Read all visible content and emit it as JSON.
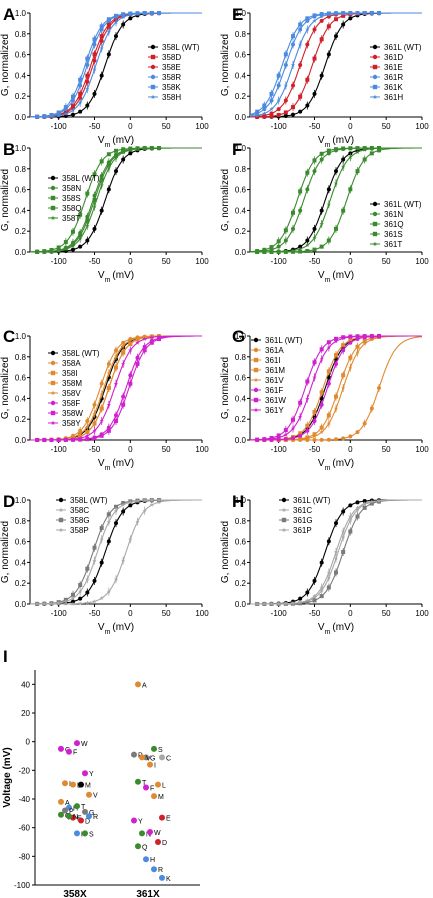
{
  "colors": {
    "wt": "#000000",
    "blue": "#4a8be0",
    "red": "#d0202a",
    "green": "#3a8a2e",
    "orange": "#e08a30",
    "magenta": "#d020d0",
    "grey": "#7a7a7a",
    "lightgrey": "#a8a8a8"
  },
  "chart_data": [
    {
      "panel": "A",
      "type": "line",
      "xlabel": "Vm (mV)",
      "ylabel": "G, normalized",
      "xlim": [
        -140,
        100
      ],
      "ylim": [
        0,
        1
      ],
      "xticks": [
        -100,
        -50,
        0,
        50,
        100
      ],
      "yticks": [
        0.0,
        0.2,
        0.4,
        0.6,
        0.8,
        1.0
      ],
      "series": [
        {
          "name": "358L (WT)",
          "v": -35,
          "color": "#000000",
          "marker": "circle"
        },
        {
          "name": "358D",
          "v": -55,
          "color": "#d0202a",
          "marker": "square"
        },
        {
          "name": "358E",
          "v": -52,
          "color": "#d0202a",
          "marker": "circle"
        },
        {
          "name": "358R",
          "v": -60,
          "color": "#4a8be0",
          "marker": "circle"
        },
        {
          "name": "358K",
          "v": -63,
          "color": "#4a8be0",
          "marker": "square"
        },
        {
          "name": "358H",
          "v": -48,
          "color": "#4a8be0",
          "marker": "star"
        }
      ]
    },
    {
      "panel": "B",
      "type": "line",
      "xlabel": "Vm (mV)",
      "ylabel": "G, normalized",
      "xlim": [
        -140,
        100
      ],
      "ylim": [
        0,
        1
      ],
      "xticks": [
        -100,
        -50,
        0,
        50,
        100
      ],
      "yticks": [
        0.0,
        0.2,
        0.4,
        0.6,
        0.8,
        1.0
      ],
      "series": [
        {
          "name": "358L (WT)",
          "v": -35,
          "color": "#000000",
          "marker": "circle"
        },
        {
          "name": "358N",
          "v": -52,
          "color": "#3a8a2e",
          "marker": "circle"
        },
        {
          "name": "358S",
          "v": -63,
          "color": "#3a8a2e",
          "marker": "square"
        },
        {
          "name": "358Q",
          "v": -50,
          "color": "#3a8a2e",
          "marker": "square"
        },
        {
          "name": "358T",
          "v": -47,
          "color": "#3a8a2e",
          "marker": "star"
        }
      ]
    },
    {
      "panel": "C",
      "type": "line",
      "xlabel": "Vm (mV)",
      "ylabel": "G, normalized",
      "xlim": [
        -140,
        100
      ],
      "ylim": [
        0,
        1
      ],
      "xticks": [
        -100,
        -50,
        0,
        50,
        100
      ],
      "yticks": [
        0.0,
        0.2,
        0.4,
        0.6,
        0.8,
        1.0
      ],
      "series": [
        {
          "name": "358L (WT)",
          "v": -35,
          "color": "#000000",
          "marker": "circle"
        },
        {
          "name": "358A",
          "v": -42,
          "color": "#e08a30",
          "marker": "circle"
        },
        {
          "name": "358I",
          "v": -30,
          "color": "#e08a30",
          "marker": "square"
        },
        {
          "name": "358M",
          "v": -30,
          "color": "#e08a30",
          "marker": "square"
        },
        {
          "name": "358V",
          "v": -37,
          "color": "#e08a30",
          "marker": "star"
        },
        {
          "name": "358F",
          "v": -6,
          "color": "#d020d0",
          "marker": "circle"
        },
        {
          "name": "358W",
          "v": -2,
          "color": "#d020d0",
          "marker": "square"
        },
        {
          "name": "358Y",
          "v": -22,
          "color": "#d020d0",
          "marker": "star"
        }
      ]
    },
    {
      "panel": "D",
      "type": "line",
      "xlabel": "Vm (mV)",
      "ylabel": "G, normalized",
      "xlim": [
        -140,
        100
      ],
      "ylim": [
        0,
        1
      ],
      "xticks": [
        -100,
        -50,
        0,
        50,
        100
      ],
      "yticks": [
        0.0,
        0.2,
        0.4,
        0.6,
        0.8,
        1.0
      ],
      "series": [
        {
          "name": "358L (WT)",
          "v": -35,
          "color": "#000000",
          "marker": "circle"
        },
        {
          "name": "358C",
          "v": -6,
          "color": "#a8a8a8",
          "marker": "star"
        },
        {
          "name": "358G",
          "v": -52,
          "color": "#7a7a7a",
          "marker": "square"
        },
        {
          "name": "358P",
          "v": -46,
          "color": "#a8a8a8",
          "marker": "star"
        }
      ]
    },
    {
      "panel": "E",
      "type": "line",
      "xlabel": "Vm (mV)",
      "ylabel": "G, normalized",
      "xlim": [
        -140,
        100
      ],
      "ylim": [
        0,
        1
      ],
      "xticks": [
        -100,
        -50,
        0,
        50,
        100
      ],
      "yticks": [
        0.0,
        0.2,
        0.4,
        0.6,
        0.8,
        1.0
      ],
      "series": [
        {
          "name": "361L (WT)",
          "v": -35,
          "color": "#000000",
          "marker": "circle"
        },
        {
          "name": "361D",
          "v": -70,
          "color": "#d0202a",
          "marker": "circle"
        },
        {
          "name": "361E",
          "v": -53,
          "color": "#d0202a",
          "marker": "square"
        },
        {
          "name": "361R",
          "v": -90,
          "color": "#4a8be0",
          "marker": "circle"
        },
        {
          "name": "361K",
          "v": -95,
          "color": "#4a8be0",
          "marker": "square"
        },
        {
          "name": "361H",
          "v": -80,
          "color": "#4a8be0",
          "marker": "star"
        }
      ]
    },
    {
      "panel": "F",
      "type": "line",
      "xlabel": "Vm (mV)",
      "ylabel": "G, normalized",
      "xlim": [
        -140,
        100
      ],
      "ylim": [
        0,
        1
      ],
      "xticks": [
        -100,
        -50,
        0,
        50,
        100
      ],
      "yticks": [
        0.0,
        0.2,
        0.4,
        0.6,
        0.8,
        1.0
      ],
      "series": [
        {
          "name": "361L (WT)",
          "v": -35,
          "color": "#000000",
          "marker": "circle"
        },
        {
          "name": "361N",
          "v": -65,
          "color": "#3a8a2e",
          "marker": "circle"
        },
        {
          "name": "361Q",
          "v": -74,
          "color": "#3a8a2e",
          "marker": "square"
        },
        {
          "name": "361S",
          "v": -5,
          "color": "#3a8a2e",
          "marker": "square"
        },
        {
          "name": "361T",
          "v": -28,
          "color": "#3a8a2e",
          "marker": "star"
        }
      ]
    },
    {
      "panel": "G",
      "type": "line",
      "xlabel": "Vm (mV)",
      "ylabel": "G, normalized",
      "xlim": [
        -140,
        100
      ],
      "ylim": [
        0,
        1
      ],
      "xticks": [
        -100,
        -50,
        0,
        50,
        100
      ],
      "yticks": [
        0.0,
        0.2,
        0.4,
        0.6,
        0.8,
        1.0
      ],
      "series": [
        {
          "name": "361L (WT)",
          "v": -35,
          "color": "#000000",
          "marker": "circle"
        },
        {
          "name": "361A",
          "v": 40,
          "color": "#e08a30",
          "marker": "circle"
        },
        {
          "name": "361I",
          "v": -16,
          "color": "#e08a30",
          "marker": "square"
        },
        {
          "name": "361M",
          "v": -38,
          "color": "#e08a30",
          "marker": "square"
        },
        {
          "name": "361V",
          "v": -10,
          "color": "#e08a30",
          "marker": "star"
        },
        {
          "name": "361F",
          "v": -32,
          "color": "#d020d0",
          "marker": "circle"
        },
        {
          "name": "361W",
          "v": -63,
          "color": "#d020d0",
          "marker": "square"
        },
        {
          "name": "361Y",
          "v": -55,
          "color": "#d020d0",
          "marker": "star"
        }
      ]
    },
    {
      "panel": "H",
      "type": "line",
      "xlabel": "Vm (mV)",
      "ylabel": "G, normalized",
      "xlim": [
        -140,
        100
      ],
      "ylim": [
        0,
        1
      ],
      "xticks": [
        -100,
        -50,
        0,
        50,
        100
      ],
      "yticks": [
        0.0,
        0.2,
        0.4,
        0.6,
        0.8,
        1.0
      ],
      "series": [
        {
          "name": "361L (WT)",
          "v": -35,
          "color": "#000000",
          "marker": "circle"
        },
        {
          "name": "361C",
          "v": -17,
          "color": "#a8a8a8",
          "marker": "star"
        },
        {
          "name": "361G",
          "v": -10,
          "color": "#7a7a7a",
          "marker": "square"
        },
        {
          "name": "361P",
          "v": -20,
          "color": "#a8a8a8",
          "marker": "star"
        }
      ]
    },
    {
      "panel": "I",
      "type": "scatter",
      "ylabel": "Voltage (mV)",
      "ylim": [
        -100,
        50
      ],
      "yticks": [
        40,
        20,
        0,
        -20,
        -40,
        -60,
        -80,
        -100
      ],
      "categories": [
        "358X",
        "361X"
      ],
      "points": [
        {
          "cat": "358X",
          "label": "C",
          "v": -5,
          "color": "#d020d0"
        },
        {
          "cat": "358X",
          "label": "F",
          "v": -7,
          "color": "#d020d0"
        },
        {
          "cat": "358X",
          "label": "W",
          "v": -1,
          "color": "#d020d0"
        },
        {
          "cat": "358X",
          "label": "Y",
          "v": -22,
          "color": "#d020d0"
        },
        {
          "cat": "358X",
          "label": "I",
          "v": -29,
          "color": "#e08a30"
        },
        {
          "cat": "358X",
          "label": "L",
          "v": -30,
          "color": "#e08a30"
        },
        {
          "cat": "358X",
          "label": "M",
          "v": -30,
          "color": "#000000"
        },
        {
          "cat": "358X",
          "label": "V",
          "v": -37,
          "color": "#e08a30"
        },
        {
          "cat": "358X",
          "label": "A",
          "v": -42,
          "color": "#e08a30"
        },
        {
          "cat": "358X",
          "label": "H",
          "v": -46,
          "color": "#4a8be0"
        },
        {
          "cat": "358X",
          "label": "T",
          "v": -45,
          "color": "#3a8a2e"
        },
        {
          "cat": "358X",
          "label": "G",
          "v": -49,
          "color": "#7a7a7a"
        },
        {
          "cat": "358X",
          "label": "P",
          "v": -48,
          "color": "#7a7a7a"
        },
        {
          "cat": "358X",
          "label": "E",
          "v": -53,
          "color": "#d0202a"
        },
        {
          "cat": "358X",
          "label": "D",
          "v": -55,
          "color": "#d0202a"
        },
        {
          "cat": "358X",
          "label": "R",
          "v": -52,
          "color": "#4a8be0"
        },
        {
          "cat": "358X",
          "label": "Q",
          "v": -51,
          "color": "#3a8a2e"
        },
        {
          "cat": "358X",
          "label": "N",
          "v": -52,
          "color": "#3a8a2e"
        },
        {
          "cat": "358X",
          "label": "K",
          "v": -64,
          "color": "#4a8be0"
        },
        {
          "cat": "358X",
          "label": "S",
          "v": -64,
          "color": "#3a8a2e"
        },
        {
          "cat": "361X",
          "label": "A",
          "v": 40,
          "color": "#e08a30"
        },
        {
          "cat": "361X",
          "label": "G",
          "v": -11,
          "color": "#7a7a7a"
        },
        {
          "cat": "361X",
          "label": "S",
          "v": -5,
          "color": "#3a8a2e"
        },
        {
          "cat": "361X",
          "label": "C",
          "v": -11,
          "color": "#a8a8a8"
        },
        {
          "cat": "361X",
          "label": "P",
          "v": -9,
          "color": "#7a7a7a"
        },
        {
          "cat": "361X",
          "label": "V",
          "v": -11,
          "color": "#e08a30"
        },
        {
          "cat": "361X",
          "label": "I",
          "v": -16,
          "color": "#e08a30"
        },
        {
          "cat": "361X",
          "label": "L",
          "v": -30,
          "color": "#e08a30"
        },
        {
          "cat": "361X",
          "label": "T",
          "v": -28,
          "color": "#3a8a2e"
        },
        {
          "cat": "361X",
          "label": "F",
          "v": -32,
          "color": "#d020d0"
        },
        {
          "cat": "361X",
          "label": "M",
          "v": -38,
          "color": "#e08a30"
        },
        {
          "cat": "361X",
          "label": "E",
          "v": -53,
          "color": "#d0202a"
        },
        {
          "cat": "361X",
          "label": "Y",
          "v": -55,
          "color": "#d020d0"
        },
        {
          "cat": "361X",
          "label": "N",
          "v": -64,
          "color": "#3a8a2e"
        },
        {
          "cat": "361X",
          "label": "W",
          "v": -63,
          "color": "#d020d0"
        },
        {
          "cat": "361X",
          "label": "D",
          "v": -70,
          "color": "#d0202a"
        },
        {
          "cat": "361X",
          "label": "Q",
          "v": -73,
          "color": "#3a8a2e"
        },
        {
          "cat": "361X",
          "label": "H",
          "v": -82,
          "color": "#4a8be0"
        },
        {
          "cat": "361X",
          "label": "R",
          "v": -89,
          "color": "#4a8be0"
        },
        {
          "cat": "361X",
          "label": "K",
          "v": -95,
          "color": "#4a8be0"
        }
      ]
    }
  ]
}
